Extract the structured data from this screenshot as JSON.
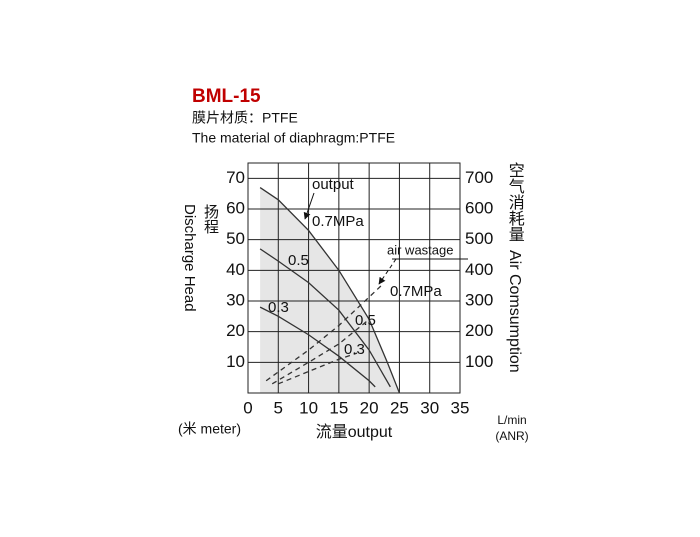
{
  "chart_data": {
    "type": "line",
    "title": "BML-15",
    "subtitle": [
      "膜片材质：PTFE",
      "The material of diaphragm:PTFE"
    ],
    "xlabel": "流量output",
    "ylabel_cn": "扬程",
    "ylabel": "Discharge Head",
    "y2label_cn": "空气消耗量",
    "y2label": "Air Comsumption",
    "y_unit": "(米 meter)",
    "x_unit": [
      "L/min",
      "(ANR)"
    ],
    "annotations": [
      "output",
      "air wastage"
    ],
    "xlim": [
      0,
      35
    ],
    "xticks": [
      0,
      5,
      10,
      15,
      20,
      25,
      30,
      35
    ],
    "ylim": [
      0,
      75
    ],
    "yticks": [
      10,
      20,
      30,
      40,
      50,
      60,
      70
    ],
    "y2lim": [
      0,
      750
    ],
    "y2ticks": [
      100,
      200,
      300,
      400,
      500,
      600,
      700
    ],
    "grid": true,
    "series": [
      {
        "name": "0.7MPa",
        "color": "#333333",
        "fill": "#e6e6e6",
        "x": [
          2,
          5,
          10,
          15,
          20,
          23,
          25
        ],
        "values": [
          67,
          63,
          53,
          40,
          24,
          10,
          0
        ]
      },
      {
        "name": "0.5",
        "color": "#333333",
        "x": [
          2,
          5,
          10,
          15,
          20,
          23.5
        ],
        "values": [
          47,
          43,
          36,
          27,
          14,
          2
        ]
      },
      {
        "name": "0.3",
        "color": "#333333",
        "x": [
          2,
          5,
          10,
          15,
          20,
          21
        ],
        "values": [
          28,
          25,
          19,
          12,
          4,
          2
        ]
      },
      {
        "name": "0.7MPa",
        "color": "#333333",
        "dashed": true,
        "axis": "y2",
        "x": [
          3,
          10,
          15,
          22
        ],
        "values": [
          40,
          140,
          220,
          350
        ]
      },
      {
        "name": "0.5",
        "color": "#333333",
        "dashed": true,
        "axis": "y2",
        "x": [
          4,
          10,
          15,
          20
        ],
        "values": [
          30,
          100,
          160,
          240
        ]
      },
      {
        "name": "0.3",
        "color": "#333333",
        "dashed": true,
        "axis": "y2",
        "x": [
          5,
          10,
          15,
          18
        ],
        "values": [
          30,
          70,
          110,
          130
        ]
      }
    ]
  }
}
